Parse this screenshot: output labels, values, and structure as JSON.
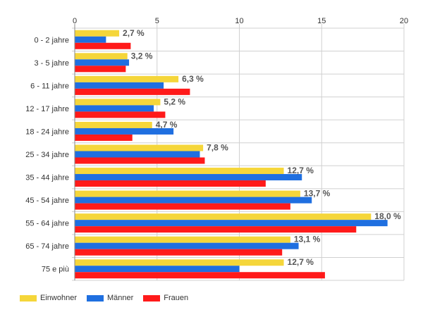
{
  "chart_data": {
    "type": "bar",
    "orientation": "horizontal",
    "categories": [
      "0 - 2 jahre",
      "3 - 5 jahre",
      "6 - 11 jahre",
      "12 - 17 jahre",
      "18 - 24 jahre",
      "25 - 34 jahre",
      "35 - 44 jahre",
      "45 - 54 jahre",
      "55 - 64 jahre",
      "65 - 74 jahre",
      "75 e più"
    ],
    "series": [
      {
        "name": "Einwohner",
        "color": "#f5d63a",
        "values": [
          2.7,
          3.2,
          6.3,
          5.2,
          4.7,
          7.8,
          12.7,
          13.7,
          18.0,
          13.1,
          12.7
        ],
        "labels": [
          "2,7 %",
          "3,2 %",
          "6,3 %",
          "5,2 %",
          "4,7 %",
          "7,8 %",
          "12,7 %",
          "13,7 %",
          "18,0 %",
          "13,1 %",
          "12,7 %"
        ]
      },
      {
        "name": "Männer",
        "color": "#1f6fe0",
        "values": [
          1.9,
          3.3,
          5.4,
          4.8,
          6.0,
          7.6,
          13.8,
          14.4,
          19.0,
          13.6,
          10.0
        ]
      },
      {
        "name": "Frauen",
        "color": "#ff1a1a",
        "values": [
          3.4,
          3.1,
          7.0,
          5.5,
          3.5,
          7.9,
          11.6,
          13.1,
          17.1,
          12.6,
          15.2
        ]
      }
    ],
    "xlim": [
      0,
      20
    ],
    "xticks": [
      0,
      5,
      10,
      15,
      20
    ],
    "grid": true,
    "legend_position": "bottom-left"
  },
  "legend": [
    {
      "label": "Einwohner",
      "color": "#f5d63a"
    },
    {
      "label": "Männer",
      "color": "#1f6fe0"
    },
    {
      "label": "Frauen",
      "color": "#ff1a1a"
    }
  ]
}
